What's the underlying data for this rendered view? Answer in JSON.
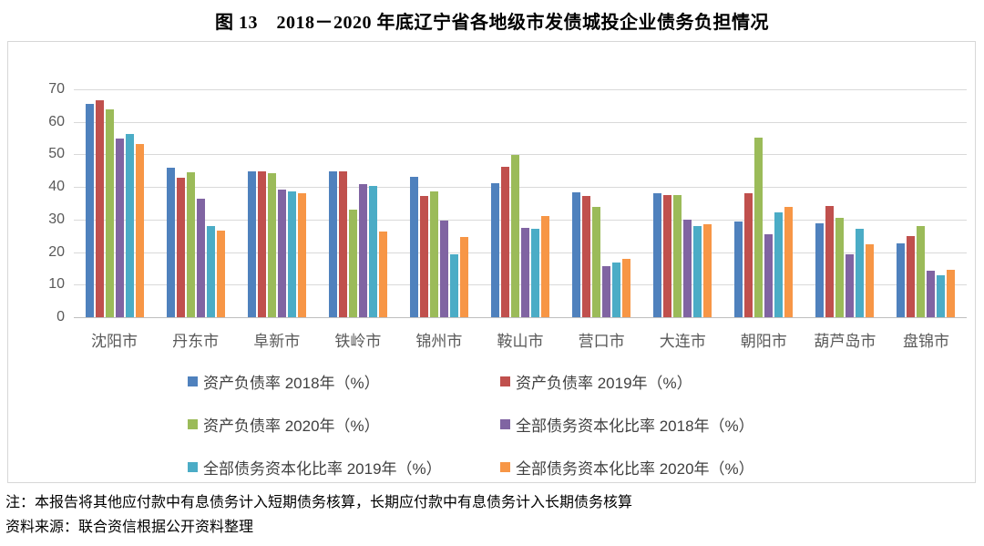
{
  "title": "图 13　2018－2020 年底辽宁省各地级市发债城投企业债务负担情况",
  "chart_data": {
    "type": "bar",
    "categories": [
      "沈阳市",
      "丹东市",
      "阜新市",
      "铁岭市",
      "锦州市",
      "鞍山市",
      "营口市",
      "大连市",
      "朝阳市",
      "葫芦岛市",
      "盘锦市"
    ],
    "series": [
      {
        "name": "资产负债率 2018年（%）",
        "color": "#4F81BD",
        "values": [
          65.5,
          46.0,
          44.9,
          44.7,
          43.0,
          41.3,
          38.4,
          38.1,
          29.4,
          28.8,
          22.6
        ]
      },
      {
        "name": "资产负债率 2019年（%）",
        "color": "#C0504D",
        "values": [
          66.6,
          42.9,
          44.8,
          44.7,
          37.3,
          46.3,
          37.3,
          37.4,
          38.0,
          34.1,
          25.0
        ]
      },
      {
        "name": "资产负债率 2020年（%）",
        "color": "#9BBB59",
        "values": [
          63.9,
          44.4,
          44.3,
          33.0,
          38.7,
          49.8,
          34.0,
          37.5,
          55.1,
          30.5,
          27.9
        ]
      },
      {
        "name": "全部债务资本化比率 2018年（%）",
        "color": "#8064A2",
        "values": [
          54.9,
          36.3,
          39.1,
          40.9,
          29.8,
          27.5,
          15.8,
          30.1,
          25.5,
          19.3,
          14.3
        ]
      },
      {
        "name": "全部债务资本化比率 2019年（%）",
        "color": "#4BACC6",
        "values": [
          56.3,
          27.9,
          38.6,
          40.3,
          19.4,
          27.1,
          16.7,
          27.9,
          32.2,
          27.2,
          13.0
        ]
      },
      {
        "name": "全部债务资本化比率 2020年（%）",
        "color": "#F79646",
        "values": [
          53.2,
          26.6,
          38.0,
          26.2,
          24.7,
          31.2,
          17.8,
          28.7,
          33.9,
          22.5,
          14.7
        ]
      }
    ],
    "ylim": [
      0,
      70
    ],
    "yticks": [
      0,
      10,
      20,
      30,
      40,
      50,
      60,
      70
    ],
    "grid": true,
    "legend_position": "bottom",
    "xlabel": "",
    "ylabel": ""
  },
  "notes": {
    "note": "注：本报告将其他应付款中有息债务计入短期债务核算，长期应付款中有息债务计入长期债务核算",
    "source": "资料来源：联合资信根据公开资料整理"
  }
}
